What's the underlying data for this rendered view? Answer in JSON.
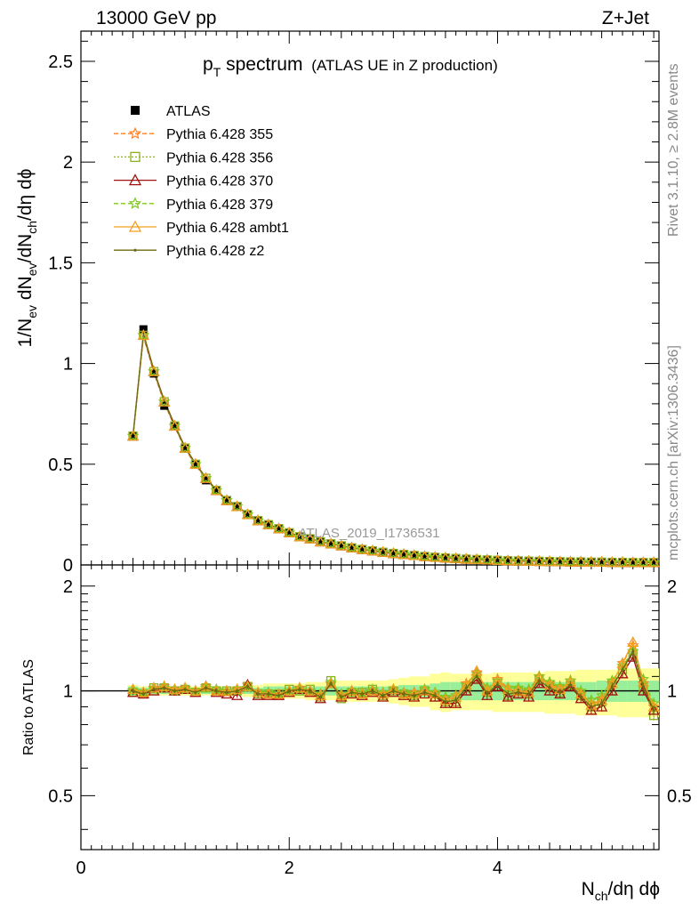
{
  "header": {
    "left": "13000 GeV pp",
    "right": "Z+Jet"
  },
  "title": {
    "main": "p",
    "sub": "T",
    "rest": " spectrum",
    "note": "(ATLAS UE in Z production)"
  },
  "side_labels": {
    "rivet": "Rivet 3.1.10, ≥ 2.8M events",
    "mcplots": "mcplots.cern.ch [arXiv:1306.3436]"
  },
  "watermark": "ATLAS_2019_I1736531",
  "axes": {
    "ylabel_main": "1/N_ev dN_ev/dN_ch/dη dϕ",
    "ylabel_ratio": "Ratio to ATLAS",
    "xlabel": "N_ch/dη dϕ",
    "x_range": [
      0,
      5.55
    ],
    "y_main_range": [
      0,
      2.65
    ],
    "y_ratio_range": [
      0.35,
      2.3
    ],
    "x_ticks": [
      "0",
      "2",
      "4"
    ],
    "y_main_ticks": [
      "0",
      "0.5",
      "1",
      "1.5",
      "2",
      "2.5"
    ],
    "y_ratio_ticks": [
      "0.5",
      "1",
      "2"
    ]
  },
  "legend": {
    "placement": "top-left",
    "entries": [
      {
        "label": "ATLAS",
        "color": "#000000",
        "marker": "square-filled",
        "dash": ""
      },
      {
        "label": "Pythia 6.428 355",
        "color": "#ff7f24",
        "marker": "star",
        "dash": "5,3"
      },
      {
        "label": "Pythia 6.428 356",
        "color": "#8db020",
        "marker": "square-open",
        "dash": "2,2"
      },
      {
        "label": "Pythia 6.428 370",
        "color": "#a01010",
        "marker": "triangle-open",
        "dash": ""
      },
      {
        "label": "Pythia 6.428 379",
        "color": "#7fc820",
        "marker": "star",
        "dash": "5,3"
      },
      {
        "label": "Pythia 6.428 ambt1",
        "color": "#f0a020",
        "marker": "triangle-open",
        "dash": ""
      },
      {
        "label": "Pythia 6.428 z2",
        "color": "#6b6b10",
        "marker": "dot",
        "dash": ""
      }
    ]
  },
  "chart_data": {
    "type": "line",
    "x": [
      0.5,
      0.6,
      0.7,
      0.8,
      0.9,
      1.0,
      1.1,
      1.2,
      1.3,
      1.4,
      1.5,
      1.6,
      1.7,
      1.8,
      1.9,
      2.0,
      2.1,
      2.2,
      2.3,
      2.4,
      2.5,
      2.6,
      2.7,
      2.8,
      2.9,
      3.0,
      3.1,
      3.2,
      3.3,
      3.4,
      3.5,
      3.6,
      3.7,
      3.8,
      3.9,
      4.0,
      4.1,
      4.2,
      4.3,
      4.4,
      4.5,
      4.6,
      4.7,
      4.8,
      4.9,
      5.0,
      5.1,
      5.2,
      5.3,
      5.4,
      5.5
    ],
    "atlas": [
      0.64,
      1.17,
      0.95,
      0.79,
      0.69,
      0.58,
      0.5,
      0.42,
      0.37,
      0.32,
      0.29,
      0.25,
      0.22,
      0.2,
      0.18,
      0.16,
      0.14,
      0.13,
      0.115,
      0.105,
      0.095,
      0.085,
      0.077,
      0.07,
      0.063,
      0.057,
      0.052,
      0.047,
      0.042,
      0.038,
      0.035,
      0.032,
      0.029,
      0.027,
      0.025,
      0.023,
      0.021,
      0.02,
      0.019,
      0.018,
      0.017,
      0.016,
      0.015,
      0.015,
      0.014,
      0.014,
      0.013,
      0.013,
      0.012,
      0.012,
      0.012
    ],
    "mc_main": [
      0.64,
      1.14,
      0.96,
      0.81,
      0.69,
      0.58,
      0.5,
      0.43,
      0.37,
      0.32,
      0.29,
      0.25,
      0.22,
      0.2,
      0.18,
      0.16,
      0.14,
      0.13,
      0.115,
      0.105,
      0.095,
      0.085,
      0.077,
      0.07,
      0.063,
      0.057,
      0.052,
      0.047,
      0.042,
      0.038,
      0.035,
      0.032,
      0.029,
      0.027,
      0.025,
      0.023,
      0.021,
      0.02,
      0.019,
      0.018,
      0.017,
      0.016,
      0.015,
      0.015,
      0.014,
      0.014,
      0.013,
      0.013,
      0.012,
      0.012,
      0.012
    ],
    "ratio_band_inner": [
      0.03,
      0.02,
      0.02,
      0.02,
      0.02,
      0.02,
      0.02,
      0.02,
      0.02,
      0.02,
      0.02,
      0.02,
      0.02,
      0.03,
      0.03,
      0.03,
      0.03,
      0.03,
      0.03,
      0.03,
      0.03,
      0.03,
      0.03,
      0.03,
      0.03,
      0.03,
      0.04,
      0.04,
      0.04,
      0.05,
      0.06,
      0.06,
      0.06,
      0.06,
      0.06,
      0.06,
      0.06,
      0.06,
      0.06,
      0.06,
      0.06,
      0.06,
      0.06,
      0.06,
      0.06,
      0.07,
      0.07,
      0.07,
      0.07,
      0.07,
      0.07
    ],
    "ratio_band_outer": [
      0.04,
      0.03,
      0.03,
      0.03,
      0.03,
      0.03,
      0.03,
      0.03,
      0.03,
      0.03,
      0.03,
      0.04,
      0.04,
      0.05,
      0.05,
      0.05,
      0.05,
      0.06,
      0.06,
      0.06,
      0.07,
      0.07,
      0.07,
      0.07,
      0.07,
      0.08,
      0.09,
      0.1,
      0.1,
      0.12,
      0.13,
      0.12,
      0.12,
      0.12,
      0.12,
      0.13,
      0.13,
      0.13,
      0.13,
      0.13,
      0.14,
      0.14,
      0.14,
      0.15,
      0.15,
      0.15,
      0.15,
      0.16,
      0.16,
      0.16,
      0.16
    ],
    "series": [
      {
        "name": "Pythia 6.428 355",
        "ratio": [
          1.0,
          0.98,
          1.02,
          1.03,
          1.01,
          1.02,
          1.0,
          1.03,
          1.0,
          0.99,
          1.01,
          1.04,
          0.99,
          0.98,
          0.97,
          1.0,
          1.02,
          0.99,
          0.97,
          1.05,
          0.97,
          1.0,
          0.98,
          1.0,
          0.98,
          1.01,
          0.98,
          0.99,
          1.01,
          0.98,
          0.95,
          0.97,
          1.05,
          1.13,
          1.0,
          1.08,
          1.02,
          0.99,
          1.0,
          1.1,
          1.05,
          1.02,
          1.07,
          0.98,
          0.92,
          0.95,
          1.05,
          1.2,
          1.35,
          1.05,
          0.9
        ]
      },
      {
        "name": "Pythia 6.428 356",
        "ratio": [
          0.99,
          0.98,
          1.02,
          1.02,
          1.0,
          1.01,
          0.99,
          1.02,
          1.0,
          1.0,
          1.0,
          1.03,
          0.98,
          0.98,
          0.98,
          1.01,
          1.0,
          1.01,
          0.96,
          1.07,
          0.95,
          0.99,
          0.99,
          1.01,
          0.97,
          1.0,
          0.98,
          0.97,
          1.0,
          0.96,
          0.93,
          0.93,
          1.02,
          1.1,
          0.99,
          1.05,
          0.97,
          1.0,
          0.98,
          1.08,
          1.02,
          0.99,
          1.04,
          0.97,
          0.9,
          0.93,
          1.05,
          1.15,
          1.28,
          1.02,
          0.85
        ]
      },
      {
        "name": "Pythia 6.428 370",
        "ratio": [
          0.99,
          0.98,
          1.0,
          1.02,
          1.0,
          1.01,
          0.99,
          1.03,
          0.99,
          0.98,
          0.97,
          1.04,
          0.97,
          0.97,
          0.97,
          0.99,
          1.01,
          0.99,
          0.95,
          1.05,
          0.96,
          0.98,
          0.97,
          0.99,
          0.96,
          0.99,
          0.97,
          0.96,
          0.98,
          0.96,
          0.92,
          0.92,
          1.0,
          1.08,
          0.97,
          1.03,
          0.96,
          0.98,
          0.96,
          1.05,
          1.0,
          0.98,
          1.03,
          0.95,
          0.88,
          0.9,
          1.0,
          1.12,
          1.25,
          1.0,
          0.88
        ]
      },
      {
        "name": "Pythia 6.428 379",
        "ratio": [
          1.0,
          0.99,
          1.01,
          1.02,
          1.0,
          1.01,
          1.0,
          1.02,
          1.01,
          1.0,
          1.0,
          1.02,
          0.99,
          0.99,
          0.98,
          1.0,
          1.01,
          1.0,
          0.98,
          1.06,
          0.98,
          1.0,
          0.99,
          1.01,
          0.99,
          1.01,
          0.99,
          0.98,
          1.01,
          0.99,
          0.96,
          0.97,
          1.04,
          1.12,
          1.02,
          1.07,
          1.02,
          1.02,
          1.01,
          1.1,
          1.06,
          1.03,
          1.07,
          1.0,
          0.94,
          0.97,
          1.07,
          1.18,
          1.3,
          1.08,
          0.92
        ]
      },
      {
        "name": "Pythia 6.428 ambt1",
        "ratio": [
          1.01,
          0.99,
          1.02,
          1.03,
          1.01,
          1.02,
          1.0,
          1.03,
          1.0,
          1.0,
          1.01,
          1.03,
          0.99,
          0.98,
          0.98,
          1.0,
          1.02,
          1.0,
          0.97,
          1.05,
          0.97,
          1.0,
          0.98,
          1.0,
          0.98,
          1.01,
          0.98,
          0.98,
          1.0,
          0.98,
          0.94,
          0.96,
          1.04,
          1.14,
          1.0,
          1.07,
          1.01,
          1.0,
          0.99,
          1.09,
          1.04,
          1.01,
          1.06,
          0.98,
          0.91,
          0.94,
          1.05,
          1.2,
          1.38,
          1.06,
          0.9
        ]
      },
      {
        "name": "Pythia 6.428 z2",
        "ratio": [
          1.0,
          0.98,
          1.01,
          1.02,
          1.0,
          1.01,
          0.99,
          1.02,
          1.0,
          0.99,
          1.0,
          1.03,
          0.98,
          0.98,
          0.97,
          1.0,
          1.01,
          1.0,
          0.96,
          1.05,
          0.96,
          0.99,
          0.98,
          1.0,
          0.97,
          1.0,
          0.98,
          0.97,
          0.99,
          0.97,
          0.93,
          0.94,
          1.02,
          1.1,
          0.98,
          1.04,
          0.98,
          0.99,
          0.98,
          1.07,
          1.02,
          0.99,
          1.04,
          0.96,
          0.9,
          0.92,
          1.03,
          1.15,
          1.3,
          1.03,
          0.88
        ]
      }
    ]
  }
}
